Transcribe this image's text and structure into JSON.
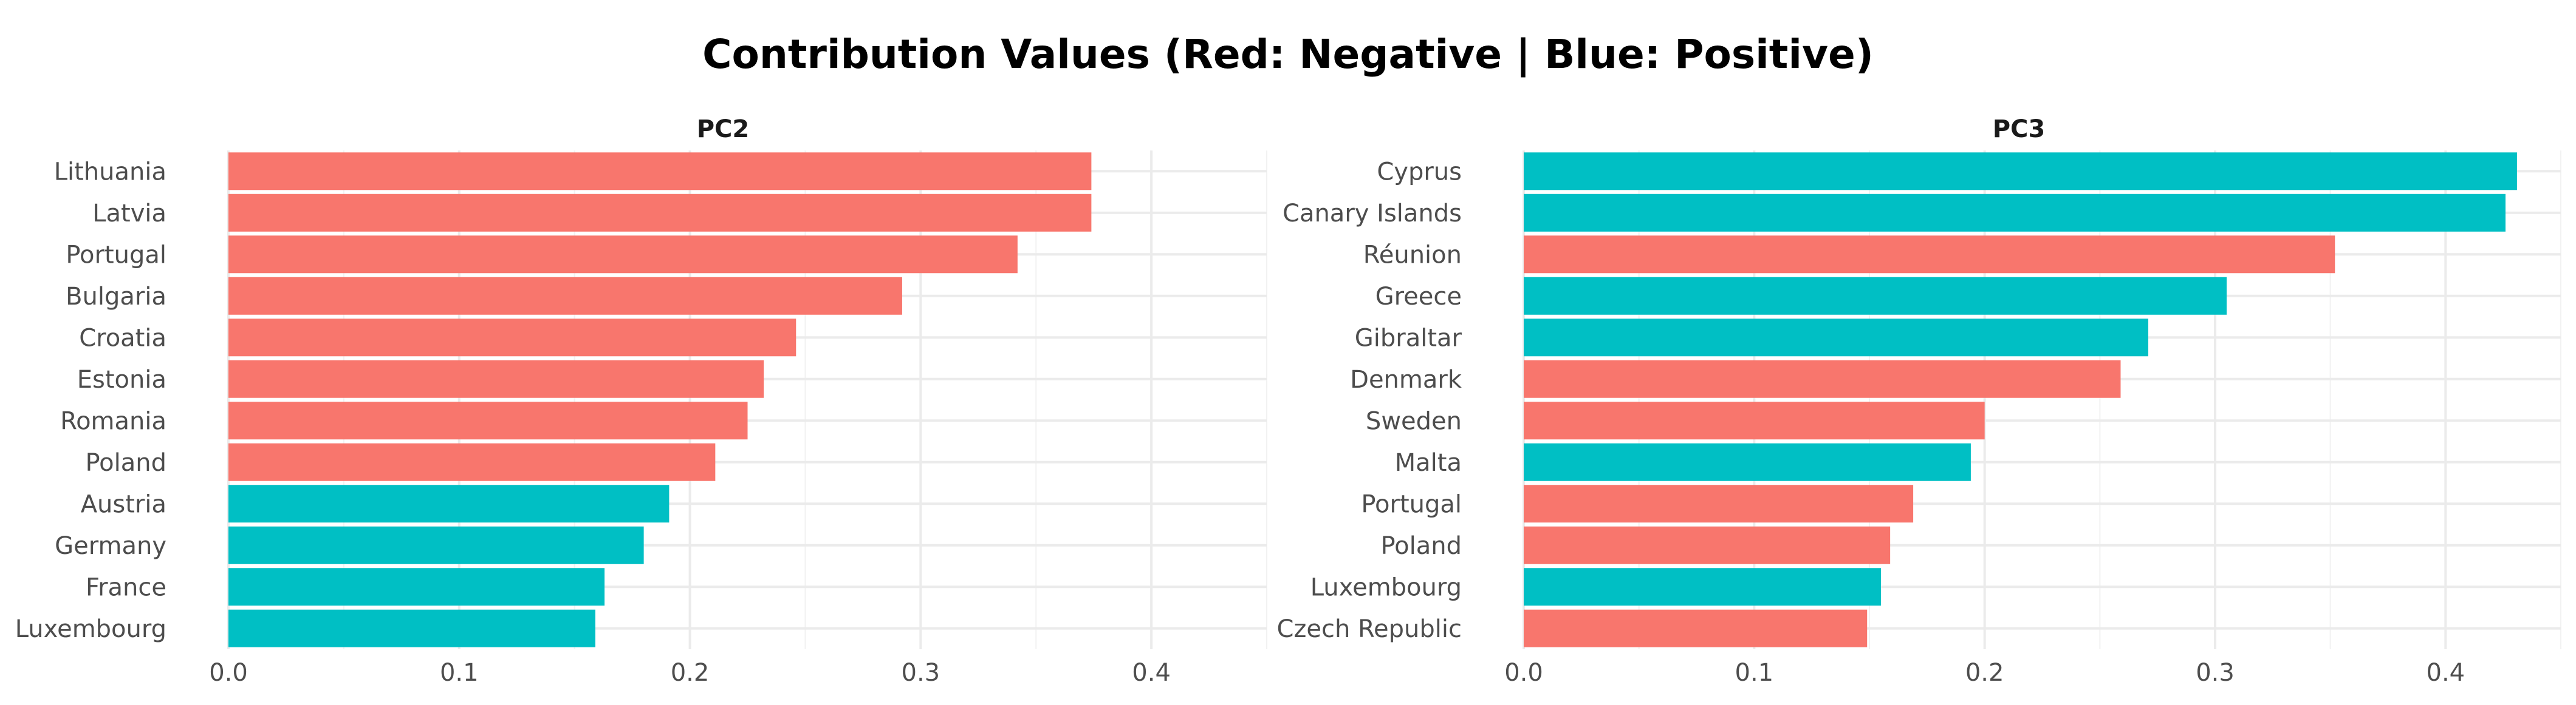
{
  "chart_data": {
    "type": "bar",
    "orientation": "horizontal",
    "title": "Contribution Values (Red: Negative | Blue: Positive)",
    "xlabel": "",
    "ylabel": "",
    "xlim": [
      0,
      0.45
    ],
    "x_ticks": [
      0.0,
      0.1,
      0.2,
      0.3,
      0.4
    ],
    "x_tick_labels": [
      "0.0",
      "0.1",
      "0.2",
      "0.3",
      "0.4"
    ],
    "grid": true,
    "legend": "none",
    "colors": {
      "negative": "#F8766D",
      "positive": "#00BFC4"
    },
    "panels": [
      {
        "title": "PC2",
        "categories": [
          "Lithuania",
          "Latvia",
          "Portugal",
          "Bulgaria",
          "Croatia",
          "Estonia",
          "Romania",
          "Poland",
          "Austria",
          "Germany",
          "France",
          "Luxembourg"
        ],
        "values": [
          0.374,
          0.374,
          0.342,
          0.292,
          0.246,
          0.232,
          0.225,
          0.211,
          0.191,
          0.18,
          0.163,
          0.159
        ],
        "signs": [
          "negative",
          "negative",
          "negative",
          "negative",
          "negative",
          "negative",
          "negative",
          "negative",
          "positive",
          "positive",
          "positive",
          "positive"
        ]
      },
      {
        "title": "PC3",
        "categories": [
          "Cyprus",
          "Canary Islands",
          "Réunion",
          "Greece",
          "Gibraltar",
          "Denmark",
          "Sweden",
          "Malta",
          "Portugal",
          "Poland",
          "Luxembourg",
          "Czech Republic"
        ],
        "values": [
          0.431,
          0.426,
          0.352,
          0.305,
          0.271,
          0.259,
          0.2,
          0.194,
          0.169,
          0.159,
          0.155,
          0.149
        ],
        "signs": [
          "positive",
          "positive",
          "negative",
          "positive",
          "positive",
          "negative",
          "negative",
          "positive",
          "negative",
          "negative",
          "positive",
          "negative"
        ]
      }
    ]
  }
}
